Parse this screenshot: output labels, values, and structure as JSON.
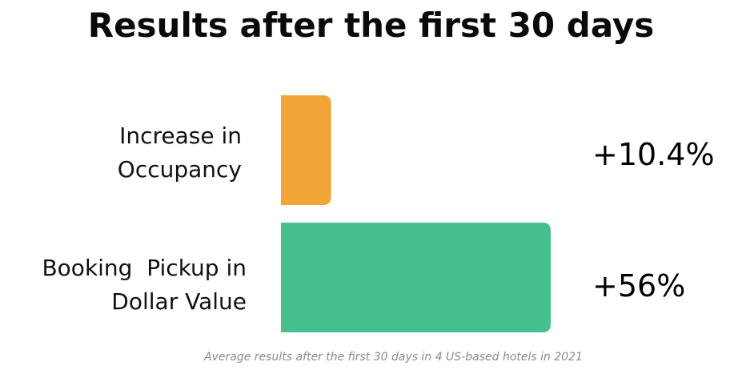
{
  "chart_data": {
    "type": "bar",
    "orientation": "horizontal",
    "title": "Results after the first 30 days",
    "categories": [
      [
        "Increase in",
        "Occupancy"
      ],
      [
        "Booking  Pickup in",
        "Dollar Value"
      ]
    ],
    "values": [
      10.4,
      56
    ],
    "value_labels": [
      "+10.4%",
      "+56%"
    ],
    "colors": [
      "#F2A436",
      "#45C08E"
    ],
    "xlim": [
      0,
      56
    ],
    "grid": false,
    "legend": "none",
    "xlabel": "",
    "ylabel": "",
    "note": "Average results after the first 30 days in 4 US-based hotels in 2021"
  }
}
